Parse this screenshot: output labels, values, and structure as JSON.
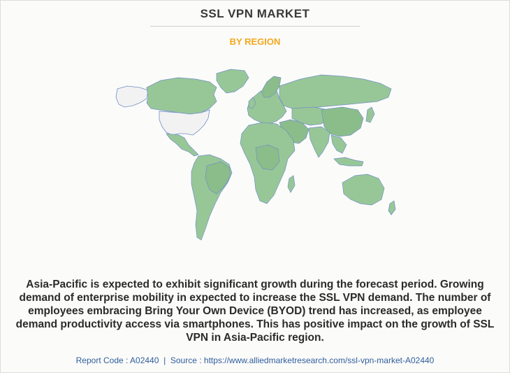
{
  "header": {
    "title": "SSL VPN MARKET",
    "subtitle": "BY REGION"
  },
  "map": {
    "highlight_color": "#98c797",
    "excluded_color": "#f2f2f2",
    "border_color": "#6f8fc7"
  },
  "description": "Asia-Pacific is expected to exhibit significant growth during the forecast period. Growing demand of enterprise mobility in expected to increase the SSL VPN demand. The number of employees embracing Bring Your Own Device (BYOD) trend has increased, as employee demand productivity access via smartphones. This has positive impact on the growth of SSL VPN in Asia-Pacific region.",
  "footer": {
    "report_code": "Report Code : A02440",
    "separator": "|",
    "source": "Source : https://www.alliedmarketresearch.com/ssl-vpn-market-A02440"
  }
}
